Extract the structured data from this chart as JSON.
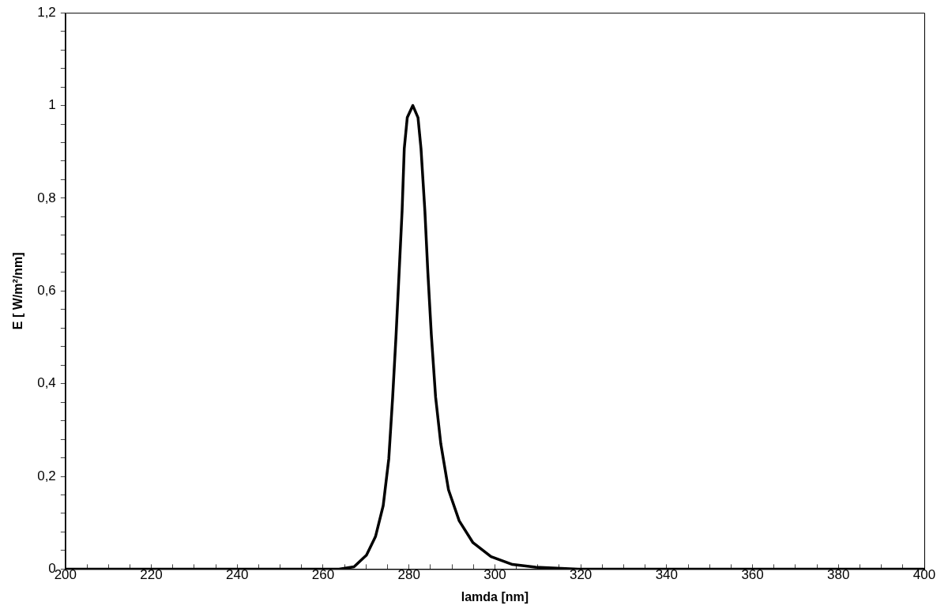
{
  "chart_data": {
    "type": "line",
    "xlabel": "lamda [nm]",
    "ylabel": "E [ W/m²/nm]",
    "marker": "none",
    "line_style": "solid",
    "grid": false,
    "xlim": [
      200,
      400
    ],
    "ylim": [
      0,
      1.2
    ],
    "xticks": [
      200,
      {
        "value": 205,
        "label": null
      },
      {
        "value": 210,
        "label": null
      },
      {
        "value": 215,
        "label": null
      },
      220,
      {
        "value": 225,
        "label": null
      },
      {
        "value": 230,
        "label": null
      },
      {
        "value": 235,
        "label": null
      },
      240,
      {
        "value": 245,
        "label": null
      },
      {
        "value": 250,
        "label": null
      },
      {
        "value": 255,
        "label": null
      },
      260,
      {
        "value": 265,
        "label": null
      },
      {
        "value": 270,
        "label": null
      },
      {
        "value": 275,
        "label": null
      },
      280,
      {
        "value": 285,
        "label": null
      },
      {
        "value": 290,
        "label": null
      },
      {
        "value": 295,
        "label": null
      },
      300,
      {
        "value": 305,
        "label": null
      },
      {
        "value": 310,
        "label": null
      },
      {
        "value": 315,
        "label": null
      },
      320,
      {
        "value": 325,
        "label": null
      },
      {
        "value": 330,
        "label": null
      },
      {
        "value": 335,
        "label": null
      },
      340,
      {
        "value": 345,
        "label": null
      },
      {
        "value": 350,
        "label": null
      },
      {
        "value": 355,
        "label": null
      },
      360,
      {
        "value": 365,
        "label": null
      },
      {
        "value": 370,
        "label": null
      },
      {
        "value": 375,
        "label": null
      },
      380,
      {
        "value": 385,
        "label": null
      },
      {
        "value": 390,
        "label": null
      },
      {
        "value": 395,
        "label": null
      },
      400
    ],
    "yticks": [
      0,
      {
        "value": 0.04,
        "label": null
      },
      {
        "value": 0.08,
        "label": null
      },
      {
        "value": 0.12,
        "label": null
      },
      {
        "value": 0.16,
        "label": null
      },
      {
        "value": 0.2,
        "label": "0,2"
      },
      {
        "value": 0.24,
        "label": null
      },
      {
        "value": 0.28,
        "label": null
      },
      {
        "value": 0.32,
        "label": null
      },
      {
        "value": 0.36,
        "label": null
      },
      {
        "value": 0.4,
        "label": "0,4"
      },
      {
        "value": 0.44,
        "label": null
      },
      {
        "value": 0.48,
        "label": null
      },
      {
        "value": 0.52,
        "label": null
      },
      {
        "value": 0.56,
        "label": null
      },
      {
        "value": 0.6,
        "label": "0,6"
      },
      {
        "value": 0.64,
        "label": null
      },
      {
        "value": 0.68,
        "label": null
      },
      {
        "value": 0.72,
        "label": null
      },
      {
        "value": 0.76,
        "label": null
      },
      {
        "value": 0.8,
        "label": "0,8"
      },
      {
        "value": 0.84,
        "label": null
      },
      {
        "value": 0.88,
        "label": null
      },
      {
        "value": 0.92,
        "label": null
      },
      {
        "value": 0.96,
        "label": null
      },
      1,
      {
        "value": 1.04,
        "label": null
      },
      {
        "value": 1.08,
        "label": null
      },
      {
        "value": 1.12,
        "label": null
      },
      {
        "value": 1.16,
        "label": null
      },
      {
        "value": 1.2,
        "label": "1,2"
      }
    ],
    "series": [
      {
        "color": "#000000",
        "x": [
          200,
          263.7,
          267.2,
          270.1,
          272.2,
          274.0,
          275.3,
          276.2,
          277.0,
          277.7,
          278.4,
          278.9,
          279.6,
          280.9,
          282.1,
          282.8,
          283.7,
          284.4,
          285.2,
          286.2,
          287.4,
          289.2,
          291.7,
          294.9,
          299.1,
          304.1,
          309.5,
          319.4,
          400
        ],
        "values": [
          0,
          0,
          0.005,
          0.03,
          0.07,
          0.137,
          0.238,
          0.371,
          0.506,
          0.639,
          0.773,
          0.907,
          0.974,
          1,
          0.974,
          0.907,
          0.773,
          0.639,
          0.506,
          0.371,
          0.271,
          0.171,
          0.104,
          0.057,
          0.027,
          0.01,
          0.004,
          0,
          0
        ]
      }
    ]
  }
}
